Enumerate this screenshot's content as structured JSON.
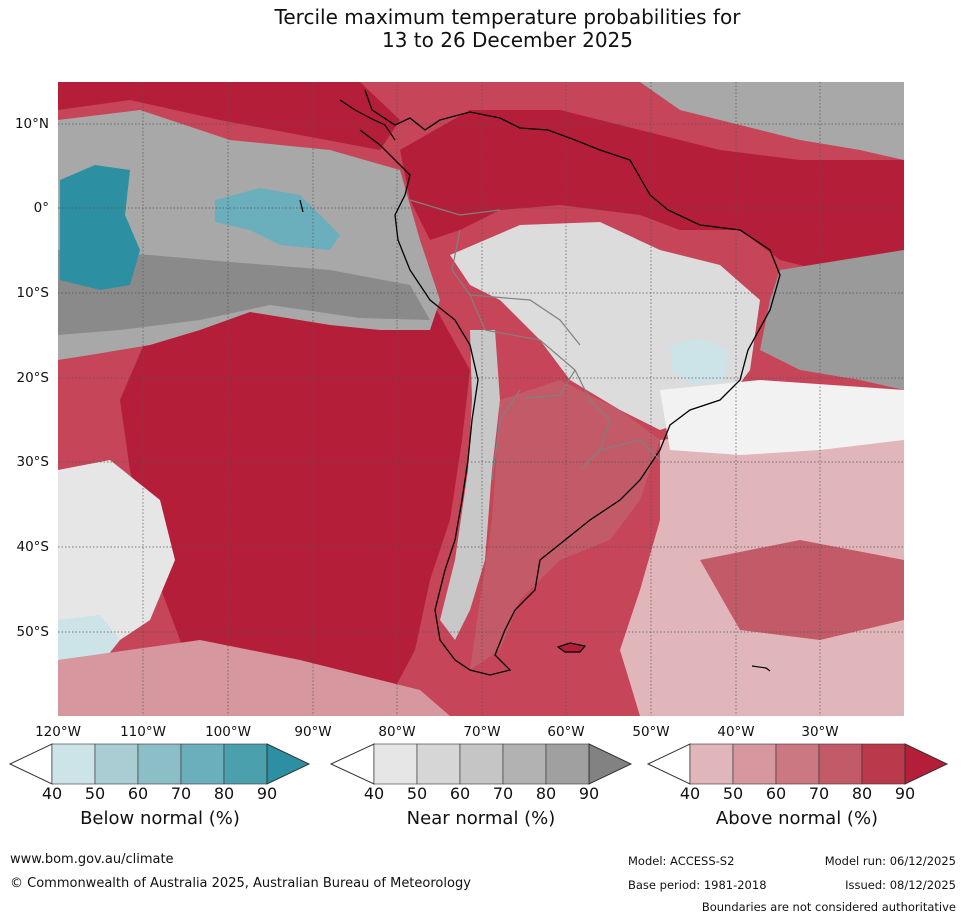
{
  "title": {
    "line1": "Tercile maximum temperature probabilities for",
    "line2": "13 to 26 December 2025"
  },
  "map": {
    "region": "South America and adjacent Pacific / Atlantic oceans",
    "longitude_ticks": [
      "120°W",
      "110°W",
      "100°W",
      "90°W",
      "80°W",
      "70°W",
      "60°W",
      "50°W",
      "40°W",
      "30°W"
    ],
    "latitude_ticks": [
      "10°N",
      "0°",
      "10°S",
      "20°S",
      "30°S",
      "40°S",
      "50°S"
    ]
  },
  "legends": [
    {
      "name": "Below normal (%)",
      "ticks": [
        "40",
        "50",
        "60",
        "70",
        "80",
        "90"
      ],
      "colors": [
        "#ffffff",
        "#cce3e8",
        "#a9cdd3",
        "#8bbec6",
        "#6aafbb",
        "#4ba0ae",
        "#2d8fa2"
      ]
    },
    {
      "name": "Near normal (%)",
      "ticks": [
        "40",
        "50",
        "60",
        "70",
        "80",
        "90"
      ],
      "colors": [
        "#ffffff",
        "#e6e6e6",
        "#d6d6d6",
        "#c5c5c5",
        "#b2b2b2",
        "#a0a0a0",
        "#828282"
      ]
    },
    {
      "name": "Above normal (%)",
      "ticks": [
        "40",
        "50",
        "60",
        "70",
        "80",
        "90"
      ],
      "colors": [
        "#ffffff",
        "#e1b6bb",
        "#d6979f",
        "#cc7882",
        "#c35a67",
        "#ba3a4c",
        "#b41e39"
      ]
    }
  ],
  "footer": {
    "website": "www.bom.gov.au/climate",
    "copyright": "© Commonwealth of Australia 2025, Australian Bureau of Meteorology",
    "model": "Model: ACCESS-S2",
    "base_period": "Base period: 1981-2018",
    "model_run": "Model run: 06/12/2025",
    "issued": "Issued: 08/12/2025",
    "disclaimer": "Boundaries are not considered authoritative"
  }
}
